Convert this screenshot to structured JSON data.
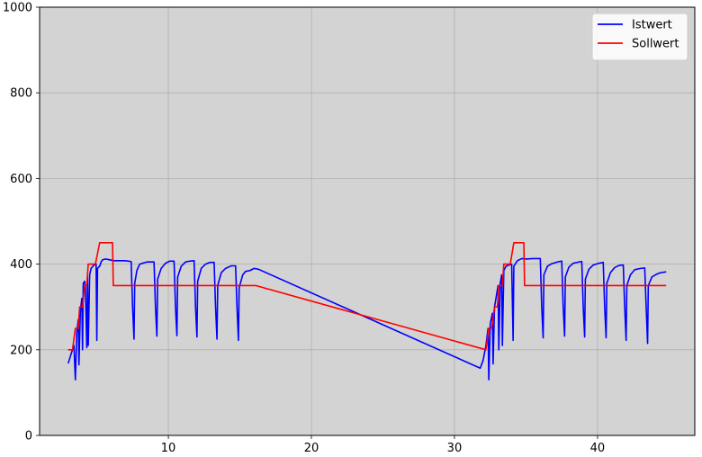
{
  "chart_data": {
    "type": "line",
    "xlim": [
      1,
      46.8
    ],
    "ylim": [
      0,
      1000
    ],
    "x_ticks": [
      10,
      20,
      30,
      40
    ],
    "y_ticks": [
      0,
      200,
      400,
      600,
      800,
      1000
    ],
    "grid": true,
    "legend_position": "top-right",
    "background_color": "#d3d3d3",
    "series": [
      {
        "name": "Istwert",
        "color": "#0000ff",
        "points": [
          [
            3.0,
            168
          ],
          [
            3.2,
            190
          ],
          [
            3.4,
            210
          ],
          [
            3.5,
            130
          ],
          [
            3.6,
            240
          ],
          [
            3.7,
            270
          ],
          [
            3.75,
            165
          ],
          [
            3.85,
            290
          ],
          [
            3.95,
            320
          ],
          [
            4.0,
            200
          ],
          [
            4.05,
            355
          ],
          [
            4.15,
            360
          ],
          [
            4.2,
            345
          ],
          [
            4.3,
            205
          ],
          [
            4.35,
            370
          ],
          [
            4.4,
            210
          ],
          [
            4.5,
            375
          ],
          [
            4.6,
            390
          ],
          [
            4.8,
            398
          ],
          [
            4.95,
            400
          ],
          [
            5.0,
            222
          ],
          [
            5.05,
            390
          ],
          [
            5.2,
            395
          ],
          [
            5.3,
            405
          ],
          [
            5.4,
            410
          ],
          [
            5.6,
            412
          ],
          [
            5.9,
            410
          ],
          [
            6.2,
            408
          ],
          [
            7.0,
            408
          ],
          [
            7.4,
            406
          ],
          [
            7.5,
            300
          ],
          [
            7.6,
            225
          ],
          [
            7.65,
            355
          ],
          [
            7.8,
            385
          ],
          [
            8.0,
            400
          ],
          [
            8.3,
            403
          ],
          [
            8.5,
            405
          ],
          [
            9.0,
            405
          ],
          [
            9.1,
            300
          ],
          [
            9.2,
            232
          ],
          [
            9.25,
            365
          ],
          [
            9.5,
            390
          ],
          [
            9.8,
            402
          ],
          [
            10.1,
            407
          ],
          [
            10.4,
            407
          ],
          [
            10.5,
            300
          ],
          [
            10.6,
            233
          ],
          [
            10.65,
            370
          ],
          [
            10.9,
            395
          ],
          [
            11.2,
            405
          ],
          [
            11.5,
            407
          ],
          [
            11.8,
            408
          ],
          [
            11.9,
            300
          ],
          [
            12.0,
            230
          ],
          [
            12.05,
            360
          ],
          [
            12.3,
            390
          ],
          [
            12.6,
            400
          ],
          [
            12.9,
            404
          ],
          [
            13.2,
            404
          ],
          [
            13.3,
            300
          ],
          [
            13.4,
            225
          ],
          [
            13.45,
            350
          ],
          [
            13.7,
            380
          ],
          [
            14.0,
            390
          ],
          [
            14.4,
            396
          ],
          [
            14.7,
            396
          ],
          [
            14.8,
            300
          ],
          [
            14.9,
            222
          ],
          [
            14.95,
            345
          ],
          [
            15.2,
            375
          ],
          [
            15.4,
            383
          ],
          [
            15.7,
            385
          ],
          [
            16.0,
            390
          ],
          [
            16.3,
            388
          ],
          [
            31.8,
            157
          ],
          [
            32.0,
            175
          ],
          [
            32.2,
            210
          ],
          [
            32.35,
            250
          ],
          [
            32.4,
            130
          ],
          [
            32.5,
            260
          ],
          [
            32.65,
            285
          ],
          [
            32.7,
            167
          ],
          [
            32.8,
            300
          ],
          [
            32.95,
            330
          ],
          [
            33.05,
            350
          ],
          [
            33.1,
            200
          ],
          [
            33.2,
            355
          ],
          [
            33.3,
            375
          ],
          [
            33.35,
            210
          ],
          [
            33.45,
            385
          ],
          [
            33.6,
            395
          ],
          [
            33.8,
            398
          ],
          [
            34.0,
            400
          ],
          [
            34.1,
            222
          ],
          [
            34.15,
            395
          ],
          [
            34.4,
            408
          ],
          [
            34.7,
            413
          ],
          [
            35.0,
            412
          ],
          [
            35.5,
            413
          ],
          [
            35.9,
            413
          ],
          [
            36.0,
            413
          ],
          [
            36.1,
            300
          ],
          [
            36.2,
            228
          ],
          [
            36.25,
            375
          ],
          [
            36.5,
            395
          ],
          [
            36.8,
            401
          ],
          [
            37.2,
            405
          ],
          [
            37.5,
            407
          ],
          [
            37.6,
            300
          ],
          [
            37.7,
            232
          ],
          [
            37.75,
            370
          ],
          [
            38.0,
            393
          ],
          [
            38.3,
            402
          ],
          [
            38.7,
            405
          ],
          [
            38.9,
            406
          ],
          [
            39.0,
            300
          ],
          [
            39.1,
            230
          ],
          [
            39.15,
            365
          ],
          [
            39.4,
            388
          ],
          [
            39.7,
            398
          ],
          [
            40.1,
            402
          ],
          [
            40.4,
            404
          ],
          [
            40.5,
            300
          ],
          [
            40.6,
            228
          ],
          [
            40.65,
            355
          ],
          [
            40.9,
            380
          ],
          [
            41.2,
            392
          ],
          [
            41.5,
            397
          ],
          [
            41.8,
            398
          ],
          [
            41.9,
            300
          ],
          [
            42.0,
            222
          ],
          [
            42.05,
            350
          ],
          [
            42.3,
            375
          ],
          [
            42.6,
            387
          ],
          [
            43.0,
            390
          ],
          [
            43.3,
            391
          ],
          [
            43.4,
            300
          ],
          [
            43.5,
            215
          ],
          [
            43.55,
            350
          ],
          [
            43.8,
            370
          ],
          [
            44.1,
            376
          ],
          [
            44.4,
            380
          ],
          [
            44.8,
            382
          ]
        ]
      },
      {
        "name": "Sollwert",
        "color": "#ff0000",
        "points": [
          [
            3.0,
            200
          ],
          [
            3.3,
            200
          ],
          [
            3.5,
            250
          ],
          [
            3.7,
            250
          ],
          [
            3.8,
            300
          ],
          [
            4.0,
            300
          ],
          [
            4.15,
            350
          ],
          [
            4.3,
            350
          ],
          [
            4.4,
            400
          ],
          [
            4.9,
            400
          ],
          [
            5.2,
            450
          ],
          [
            6.1,
            450
          ],
          [
            6.15,
            350
          ],
          [
            16.1,
            350
          ],
          [
            32.2,
            200
          ],
          [
            32.4,
            250
          ],
          [
            32.6,
            250
          ],
          [
            32.8,
            300
          ],
          [
            33.0,
            300
          ],
          [
            33.1,
            350
          ],
          [
            33.35,
            350
          ],
          [
            33.45,
            400
          ],
          [
            33.9,
            400
          ],
          [
            34.15,
            450
          ],
          [
            34.85,
            450
          ],
          [
            34.9,
            350
          ],
          [
            44.8,
            350
          ]
        ]
      }
    ]
  }
}
